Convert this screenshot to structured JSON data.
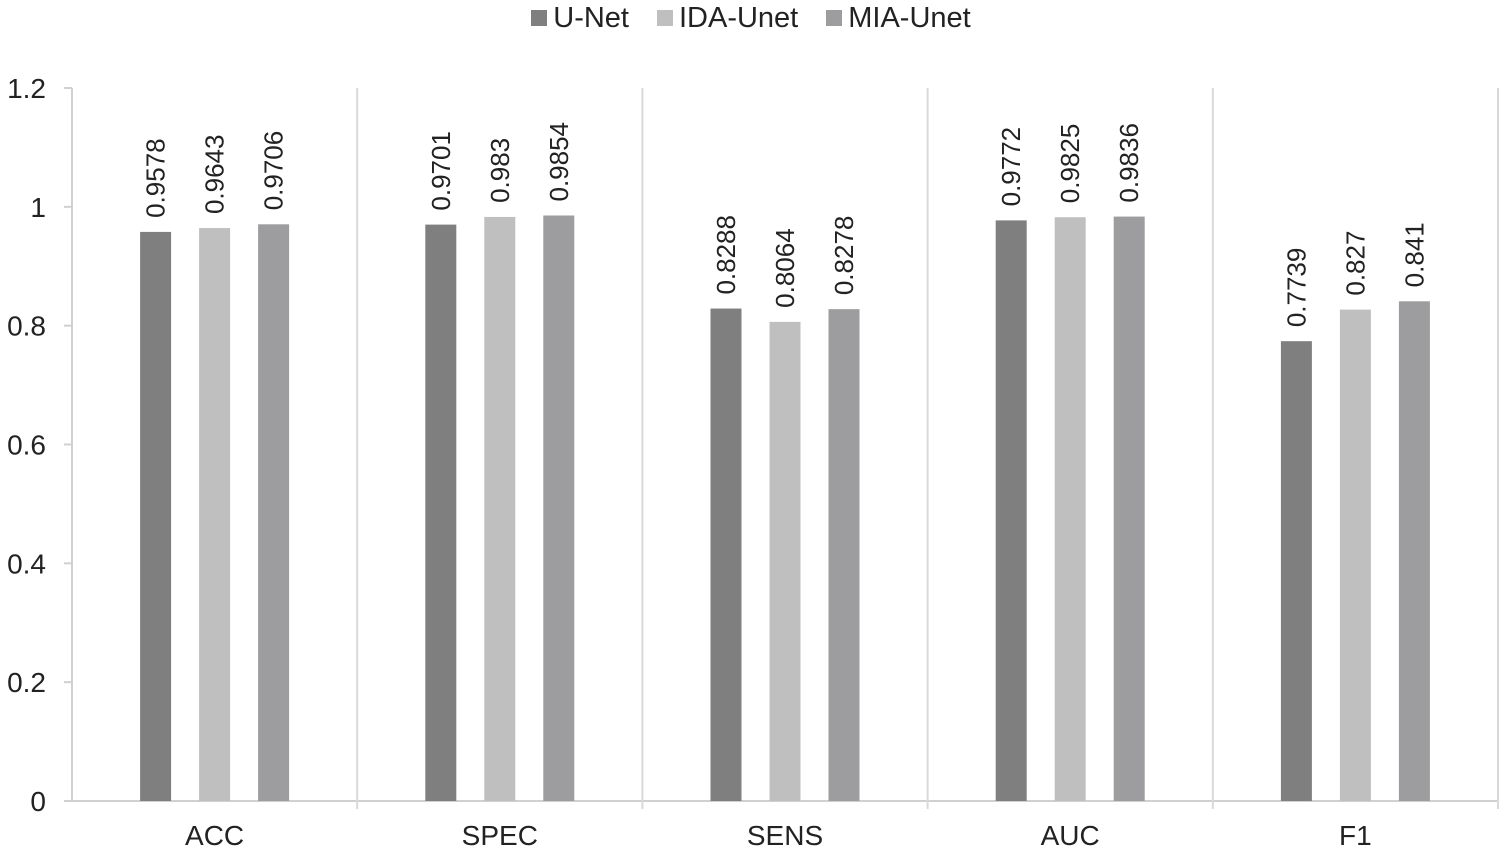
{
  "chart_data": {
    "type": "bar",
    "title": "",
    "xlabel": "",
    "ylabel": "",
    "ylim": [
      0,
      1.2
    ],
    "yticks": [
      "0",
      "0.2",
      "0.4",
      "0.6",
      "0.8",
      "1",
      "1.2"
    ],
    "ytick_values": [
      0,
      0.2,
      0.4,
      0.6,
      0.8,
      1.0,
      1.2
    ],
    "categories": [
      "ACC",
      "SPEC",
      "SENS",
      "AUC",
      "F1"
    ],
    "legend_position": "top-center",
    "grid": "vertical separators between categories",
    "series": [
      {
        "name": "U-Net",
        "color": "#7f7f7f",
        "values": [
          0.9578,
          0.9701,
          0.8288,
          0.9772,
          0.7739
        ],
        "labels": [
          "0.9578",
          "0.9701",
          "0.8288",
          "0.9772",
          "0.7739"
        ]
      },
      {
        "name": "IDA-Unet",
        "color": "#bfbfbf",
        "values": [
          0.9643,
          0.983,
          0.8064,
          0.9825,
          0.827
        ],
        "labels": [
          "0.9643",
          "0.983",
          "0.8064",
          "0.9825",
          "0.827"
        ]
      },
      {
        "name": "MIA-Unet",
        "color": "#9d9d9f",
        "values": [
          0.9706,
          0.9854,
          0.8278,
          0.9836,
          0.841
        ],
        "labels": [
          "0.9706",
          "0.9854",
          "0.8278",
          "0.9836",
          "0.841"
        ]
      }
    ]
  }
}
